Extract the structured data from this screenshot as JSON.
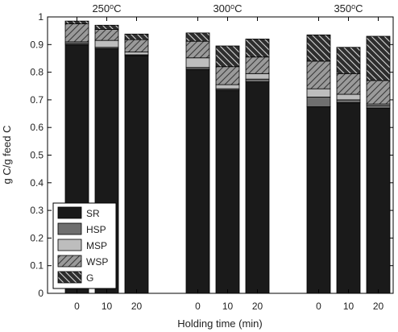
{
  "chart_data": {
    "type": "bar",
    "stacked": true,
    "xlabel": "Holding time (min)",
    "ylabel": "g C/g feed C",
    "ylim": [
      0,
      1
    ],
    "yticks": [
      0,
      0.1,
      0.2,
      0.3,
      0.4,
      0.5,
      0.6,
      0.7,
      0.8,
      0.9,
      1
    ],
    "ytick_labels": [
      "0",
      "0.1",
      "0.2",
      "0.3",
      "0.4",
      "0.5",
      "0.6",
      "0.7",
      "0.8",
      "0.9",
      "1"
    ],
    "grid": false,
    "legend_position": "bottom-left",
    "groups": [
      {
        "label": "250°C",
        "label_base": "250",
        "label_unit": "C"
      },
      {
        "label": "300°C",
        "label_base": "300",
        "label_unit": "C"
      },
      {
        "label": "350°C",
        "label_base": "350",
        "label_unit": "C"
      }
    ],
    "categories": [
      "0",
      "10",
      "20",
      "0",
      "10",
      "20",
      "0",
      "10",
      "20"
    ],
    "series": [
      {
        "name": "SR",
        "fill": "#1a1a1a",
        "pattern": "solid",
        "values": [
          0.9,
          0.885,
          0.86,
          0.81,
          0.735,
          0.765,
          0.675,
          0.69,
          0.67
        ]
      },
      {
        "name": "HSP",
        "fill": "#6f6f6f",
        "pattern": "solid",
        "values": [
          0.005,
          0.005,
          0.003,
          0.007,
          0.005,
          0.01,
          0.035,
          0.01,
          0.01
        ]
      },
      {
        "name": "MSP",
        "fill": "#bdbdbd",
        "pattern": "solid",
        "values": [
          0.005,
          0.025,
          0.01,
          0.035,
          0.015,
          0.02,
          0.03,
          0.02,
          0.005
        ]
      },
      {
        "name": "WSP",
        "fill": "#9a9a9a",
        "pattern": "hatch-up",
        "values": [
          0.065,
          0.04,
          0.045,
          0.06,
          0.065,
          0.06,
          0.1,
          0.075,
          0.085
        ]
      },
      {
        "name": "G",
        "fill": "#2e2e2e",
        "pattern": "hatch-down",
        "values": [
          0.01,
          0.015,
          0.02,
          0.03,
          0.075,
          0.065,
          0.095,
          0.095,
          0.16
        ]
      }
    ]
  }
}
